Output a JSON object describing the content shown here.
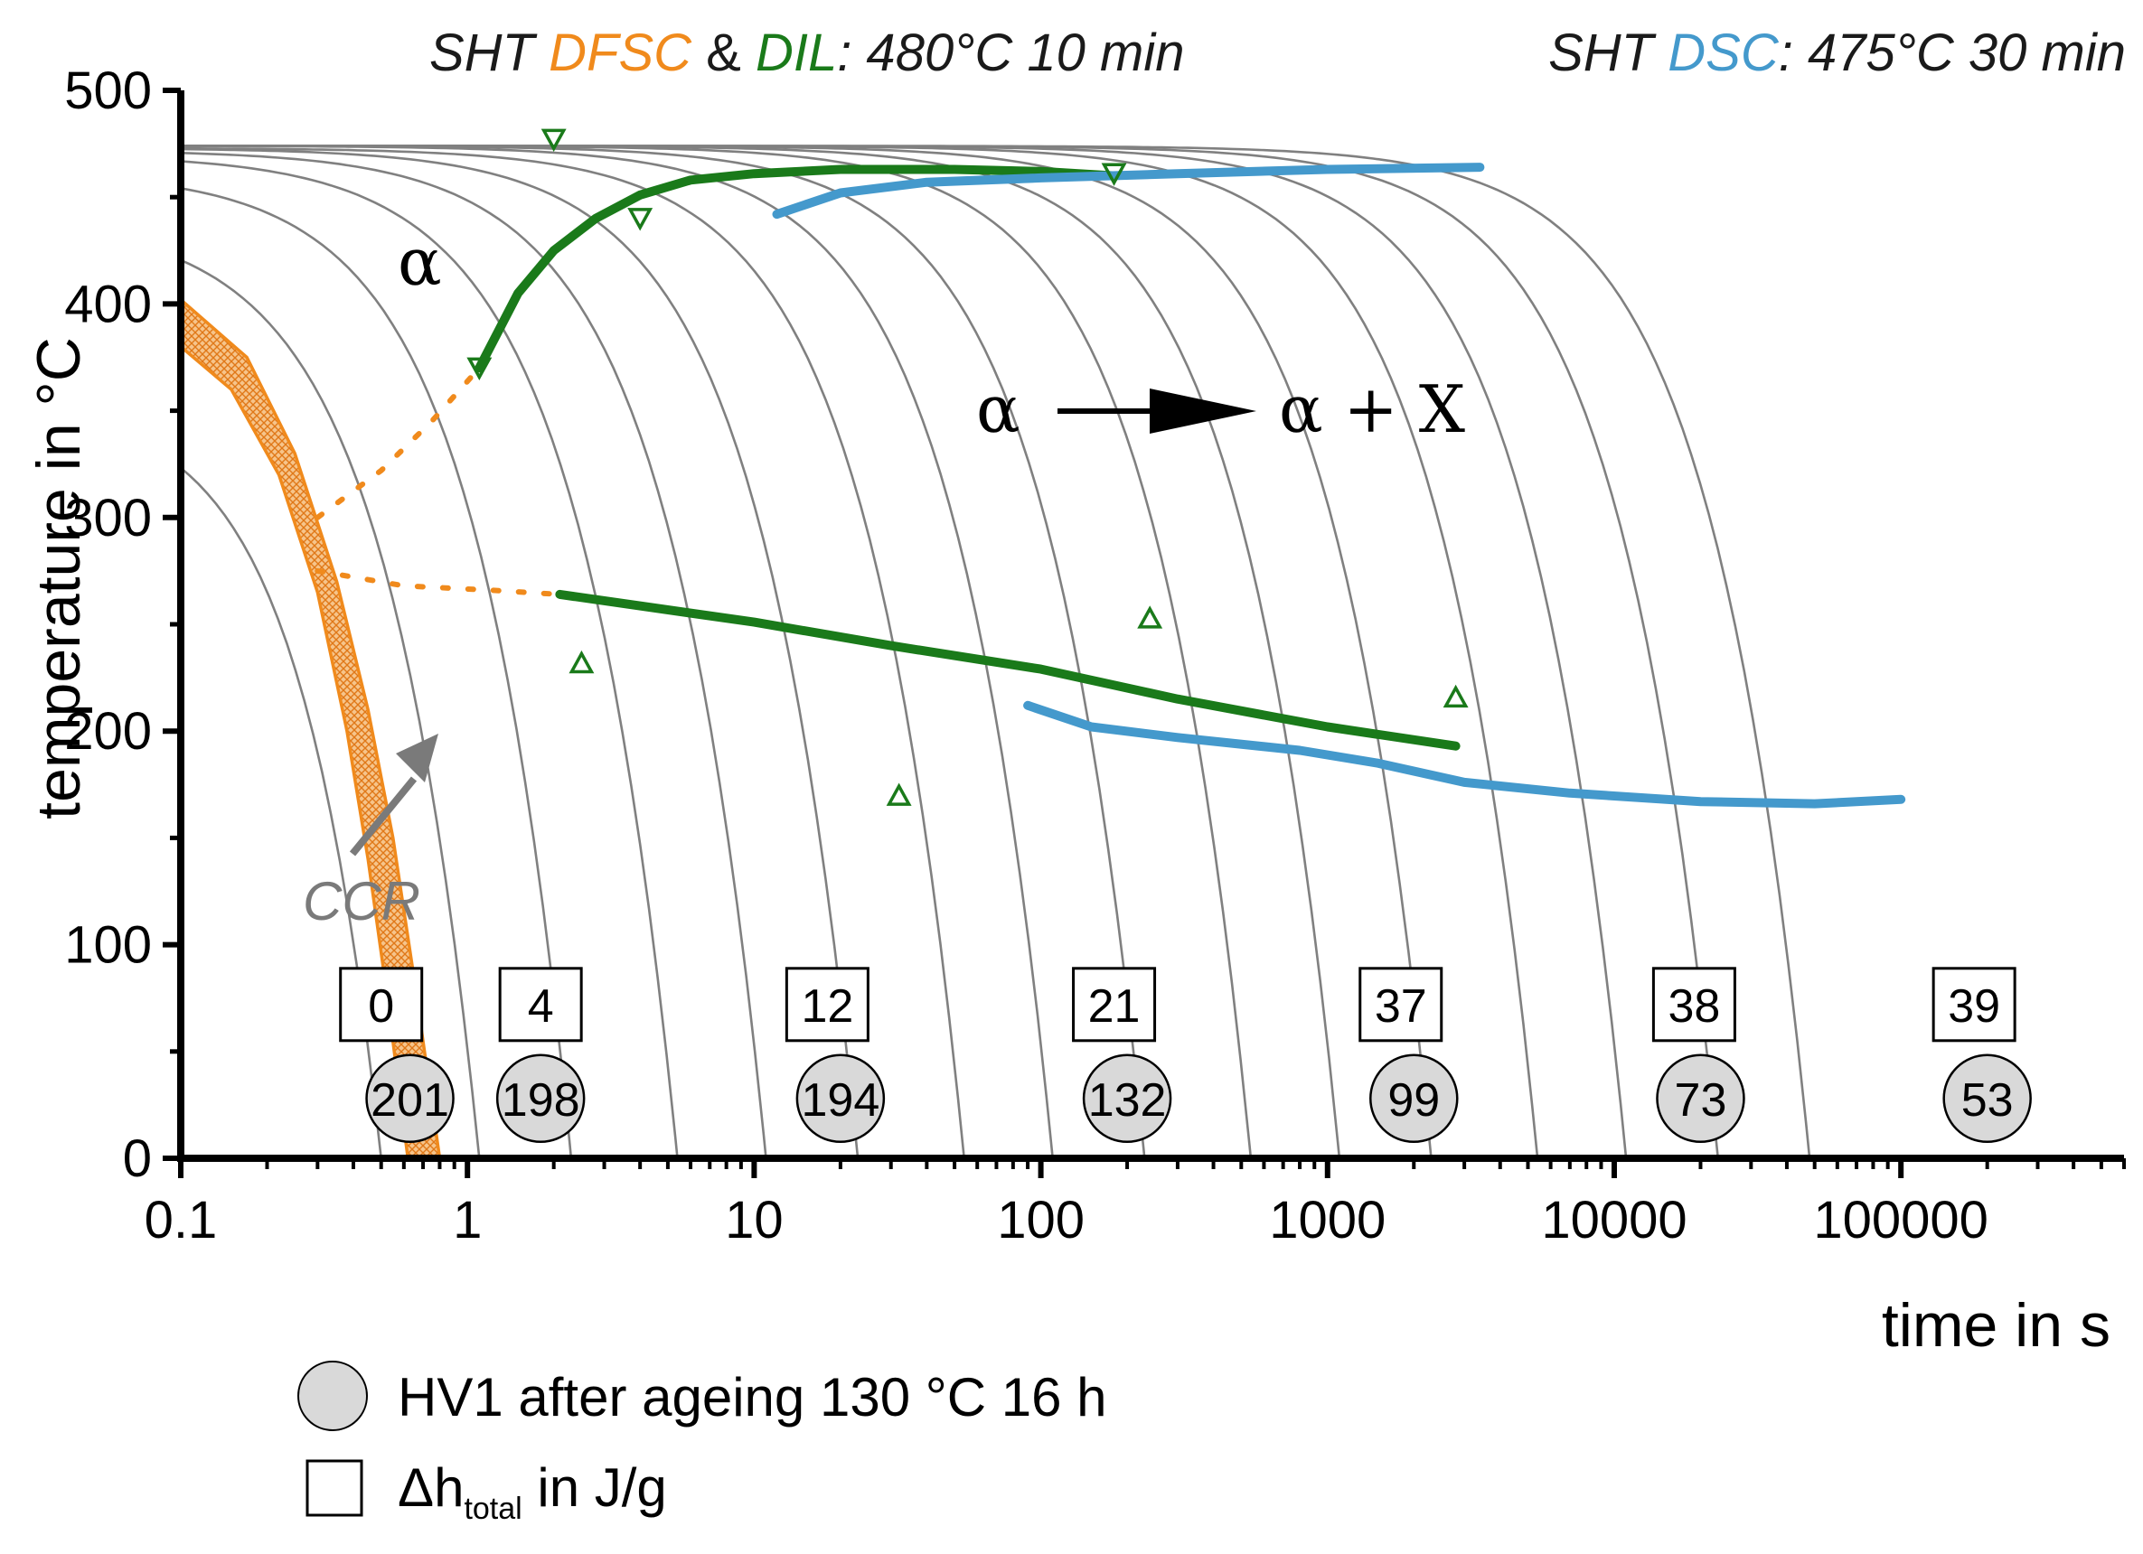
{
  "chart_data": {
    "type": "line",
    "title": {
      "left": {
        "prefix": "SHT ",
        "dfsc": "DFSC",
        "amp": " & ",
        "dil": "DIL",
        "suffix": ": 480°C 10 min"
      },
      "right": {
        "prefix": "SHT ",
        "dsc": "DSC",
        "suffix": ": 475°C 30 min"
      }
    },
    "xlabel": "time in s",
    "ylabel": "temperature in °C",
    "x_scale": "log",
    "xlim": [
      0.1,
      600000
    ],
    "ylim": [
      0,
      500
    ],
    "x_ticks": [
      {
        "value": 0.1,
        "label": "0.1"
      },
      {
        "value": 1,
        "label": "1"
      },
      {
        "value": 10,
        "label": "10"
      },
      {
        "value": 100,
        "label": "100"
      },
      {
        "value": 1000,
        "label": "1000"
      },
      {
        "value": 10000,
        "label": "10000"
      },
      {
        "value": 100000,
        "label": "100000"
      }
    ],
    "y_ticks": [
      {
        "value": 0,
        "label": "0"
      },
      {
        "value": 100,
        "label": "100"
      },
      {
        "value": 200,
        "label": "200"
      },
      {
        "value": 300,
        "label": "300"
      },
      {
        "value": 400,
        "label": "400"
      },
      {
        "value": 500,
        "label": "500"
      }
    ],
    "cooling_curves": [
      {
        "T0": 355,
        "tau": 0.5,
        "n": 1.5
      },
      {
        "T0": 440,
        "tau": 1.1,
        "n": 1.3
      },
      {
        "T0": 462,
        "tau": 2.3,
        "n": 1.3
      },
      {
        "T0": 470,
        "tau": 5.4,
        "n": 1.25
      },
      {
        "T0": 472,
        "tau": 11,
        "n": 1.25
      },
      {
        "T0": 473,
        "tau": 23,
        "n": 1.25
      },
      {
        "T0": 473,
        "tau": 54,
        "n": 1.25
      },
      {
        "T0": 474,
        "tau": 110,
        "n": 1.25
      },
      {
        "T0": 474,
        "tau": 230,
        "n": 1.25
      },
      {
        "T0": 474,
        "tau": 540,
        "n": 1.25
      },
      {
        "T0": 474,
        "tau": 1100,
        "n": 1.25
      },
      {
        "T0": 474,
        "tau": 2300,
        "n": 1.25
      },
      {
        "T0": 474,
        "tau": 5400,
        "n": 1.25
      },
      {
        "T0": 474,
        "tau": 11000,
        "n": 1.25
      },
      {
        "T0": 474,
        "tau": 23000,
        "n": 1.25
      },
      {
        "T0": 474,
        "tau": 48000,
        "n": 1.25
      }
    ],
    "ccr_band": {
      "name": "CCR",
      "upper": [
        [
          0.1,
          402
        ],
        [
          0.17,
          375
        ],
        [
          0.25,
          330
        ],
        [
          0.35,
          270
        ],
        [
          0.45,
          210
        ],
        [
          0.55,
          150
        ],
        [
          0.65,
          85
        ],
        [
          0.8,
          0
        ]
      ],
      "lower": [
        [
          0.1,
          380
        ],
        [
          0.15,
          360
        ],
        [
          0.22,
          320
        ],
        [
          0.3,
          265
        ],
        [
          0.38,
          200
        ],
        [
          0.45,
          140
        ],
        [
          0.52,
          80
        ],
        [
          0.62,
          0
        ]
      ]
    },
    "series": [
      {
        "name": "DIL precipitation start",
        "color": "#1a7a1a",
        "values": [
          [
            1.1,
            370
          ],
          [
            1.5,
            405
          ],
          [
            2.0,
            425
          ],
          [
            2.8,
            440
          ],
          [
            4,
            451
          ],
          [
            6,
            458
          ],
          [
            10,
            461
          ],
          [
            20,
            463
          ],
          [
            50,
            463
          ],
          [
            100,
            462
          ],
          [
            180,
            460
          ]
        ]
      },
      {
        "name": "DIL precipitation end",
        "color": "#1a7a1a",
        "values": [
          [
            2.1,
            264
          ],
          [
            10,
            251
          ],
          [
            30,
            240
          ],
          [
            100,
            229
          ],
          [
            300,
            215
          ],
          [
            1000,
            202
          ],
          [
            2800,
            193
          ]
        ]
      },
      {
        "name": "DSC precipitation start",
        "color": "#4499cc",
        "values": [
          [
            12,
            442
          ],
          [
            20,
            452
          ],
          [
            40,
            457
          ],
          [
            100,
            459
          ],
          [
            300,
            461
          ],
          [
            1000,
            463
          ],
          [
            3400,
            464
          ]
        ]
      },
      {
        "name": "DSC precipitation end",
        "color": "#4499cc",
        "values": [
          [
            90,
            212
          ],
          [
            150,
            202
          ],
          [
            300,
            197
          ],
          [
            800,
            191
          ],
          [
            1500,
            185
          ],
          [
            3000,
            176
          ],
          [
            7000,
            171
          ],
          [
            20000,
            167
          ],
          [
            50000,
            166
          ],
          [
            100000,
            168
          ]
        ]
      }
    ],
    "dfsc_extrapolation": [
      {
        "name": "DFSC start (extrapolated)",
        "values": [
          [
            0.3,
            300
          ],
          [
            0.5,
            322
          ],
          [
            0.75,
            345
          ],
          [
            1.1,
            370
          ]
        ]
      },
      {
        "name": "DFSC end (extrapolated)",
        "values": [
          [
            0.3,
            275
          ],
          [
            0.6,
            268
          ],
          [
            1.2,
            266
          ],
          [
            2.1,
            264
          ]
        ]
      }
    ],
    "markers_down": [
      [
        1.1,
        370
      ],
      [
        2.0,
        477
      ],
      [
        4.0,
        440
      ],
      [
        180,
        461
      ]
    ],
    "markers_up": [
      [
        2.5,
        232
      ],
      [
        32,
        170
      ],
      [
        240,
        253
      ],
      [
        2800,
        216
      ]
    ],
    "enthalpy_boxes": [
      {
        "x": 0.5,
        "label": "0"
      },
      {
        "x": 1.8,
        "label": "4"
      },
      {
        "x": 18,
        "label": "12"
      },
      {
        "x": 180,
        "label": "21"
      },
      {
        "x": 1800,
        "label": "37"
      },
      {
        "x": 19000,
        "label": "38"
      },
      {
        "x": 180000,
        "label": "39"
      }
    ],
    "hardness_circles": [
      {
        "x": 0.63,
        "label": "201"
      },
      {
        "x": 1.8,
        "label": "198"
      },
      {
        "x": 20,
        "label": "194"
      },
      {
        "x": 200,
        "label": "132"
      },
      {
        "x": 2000,
        "label": "99"
      },
      {
        "x": 20000,
        "label": "73"
      },
      {
        "x": 200000,
        "label": "53"
      }
    ],
    "annotations": {
      "alpha_label": "α",
      "reaction_left": "α",
      "reaction_right": "α + X",
      "ccr_label": "CCR"
    },
    "legend": [
      {
        "symbol": "circle",
        "text": "HV1 after ageing 130 °C 16 h"
      },
      {
        "symbol": "square",
        "text_main": "Δh",
        "text_sub": "total",
        "text_after": " in J/g"
      }
    ],
    "colors": {
      "dfsc": "#f08a1c",
      "dil": "#1a7a1a",
      "dsc": "#4499cc",
      "cooling": "#808080",
      "circle_fill": "#d9d9d9"
    }
  }
}
